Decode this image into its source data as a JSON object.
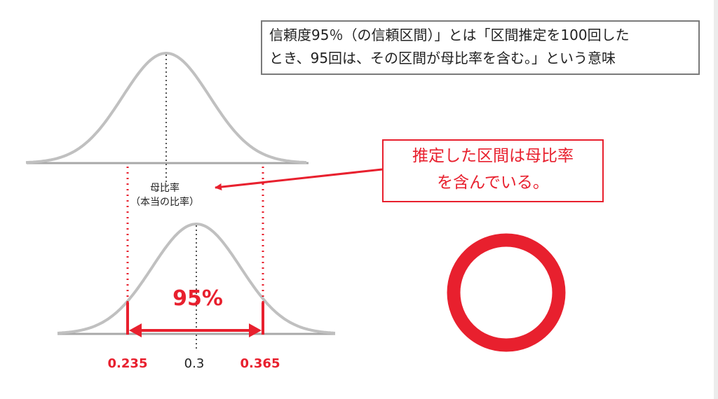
{
  "note": {
    "line1": "信頼度95％（の信頼区間）」とは「区間推定を100回した",
    "line2": "とき、95回は、その区間が母比率を含む。」という意味"
  },
  "callout": {
    "line1": "推定した区間は母比率",
    "line2": "を含んでいる。"
  },
  "parameter_label": {
    "line1": "母比率",
    "line2": "（本当の比率）"
  },
  "confidence_label": "95%",
  "interval": {
    "lower": "0.235",
    "center": "0.3",
    "upper": "0.365"
  },
  "result_symbol": "circle-mark",
  "colors": {
    "accent": "#e8202e",
    "curve": "#c0c0c0",
    "axis": "#a8a8a8",
    "border": "#7a7a7a"
  }
}
